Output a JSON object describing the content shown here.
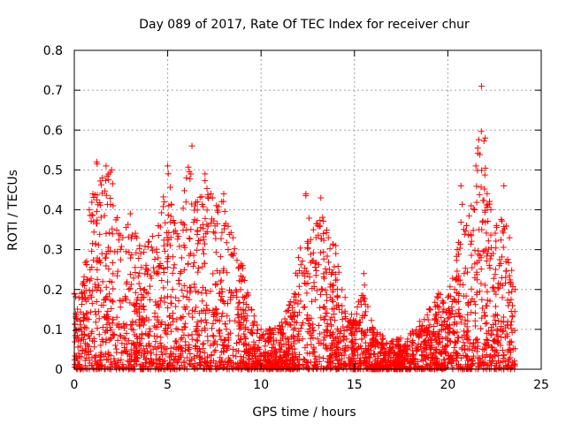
{
  "chart_data": {
    "type": "scatter",
    "title": "Day 089 of 2017, Rate Of TEC Index for receiver chur",
    "xlabel": "GPS time / hours",
    "ylabel": "ROTI / TECUs",
    "xlim": [
      0,
      25
    ],
    "ylim": [
      0,
      0.8
    ],
    "x_ticks": [
      "0",
      "5",
      "10",
      "15",
      "20",
      "25"
    ],
    "y_ticks": [
      "0",
      "0.1",
      "0.2",
      "0.3",
      "0.4",
      "0.5",
      "0.6",
      "0.7",
      "0.8"
    ],
    "grid": true,
    "marker": "+",
    "point_color": "#ff0000",
    "data_range": [
      0.0,
      23.6
    ],
    "envelope": [
      [
        0.0,
        0.19
      ],
      [
        0.5,
        0.22
      ],
      [
        0.8,
        0.4
      ],
      [
        1.0,
        0.44
      ],
      [
        1.2,
        0.52
      ],
      [
        1.5,
        0.48
      ],
      [
        1.7,
        0.51
      ],
      [
        2.0,
        0.5
      ],
      [
        2.3,
        0.38
      ],
      [
        2.6,
        0.33
      ],
      [
        3.0,
        0.39
      ],
      [
        3.5,
        0.31
      ],
      [
        4.0,
        0.32
      ],
      [
        4.5,
        0.36
      ],
      [
        5.0,
        0.51
      ],
      [
        5.5,
        0.34
      ],
      [
        6.0,
        0.48
      ],
      [
        6.3,
        0.56
      ],
      [
        6.6,
        0.42
      ],
      [
        7.0,
        0.49
      ],
      [
        7.4,
        0.43
      ],
      [
        8.0,
        0.44
      ],
      [
        8.5,
        0.33
      ],
      [
        9.0,
        0.26
      ],
      [
        9.5,
        0.15
      ],
      [
        10.0,
        0.1
      ],
      [
        11.0,
        0.11
      ],
      [
        11.5,
        0.16
      ],
      [
        12.0,
        0.28
      ],
      [
        12.4,
        0.44
      ],
      [
        12.8,
        0.35
      ],
      [
        13.2,
        0.43
      ],
      [
        13.6,
        0.33
      ],
      [
        14.0,
        0.31
      ],
      [
        14.5,
        0.18
      ],
      [
        15.0,
        0.12
      ],
      [
        15.5,
        0.24
      ],
      [
        16.0,
        0.1
      ],
      [
        17.0,
        0.07
      ],
      [
        18.0,
        0.09
      ],
      [
        18.5,
        0.12
      ],
      [
        19.0,
        0.15
      ],
      [
        19.5,
        0.19
      ],
      [
        20.0,
        0.18
      ],
      [
        20.5,
        0.3
      ],
      [
        20.7,
        0.46
      ],
      [
        21.0,
        0.36
      ],
      [
        21.5,
        0.51
      ],
      [
        21.8,
        0.71
      ],
      [
        22.0,
        0.58
      ],
      [
        22.3,
        0.4
      ],
      [
        22.6,
        0.36
      ],
      [
        23.0,
        0.46
      ],
      [
        23.3,
        0.33
      ],
      [
        23.6,
        0.2
      ]
    ]
  }
}
